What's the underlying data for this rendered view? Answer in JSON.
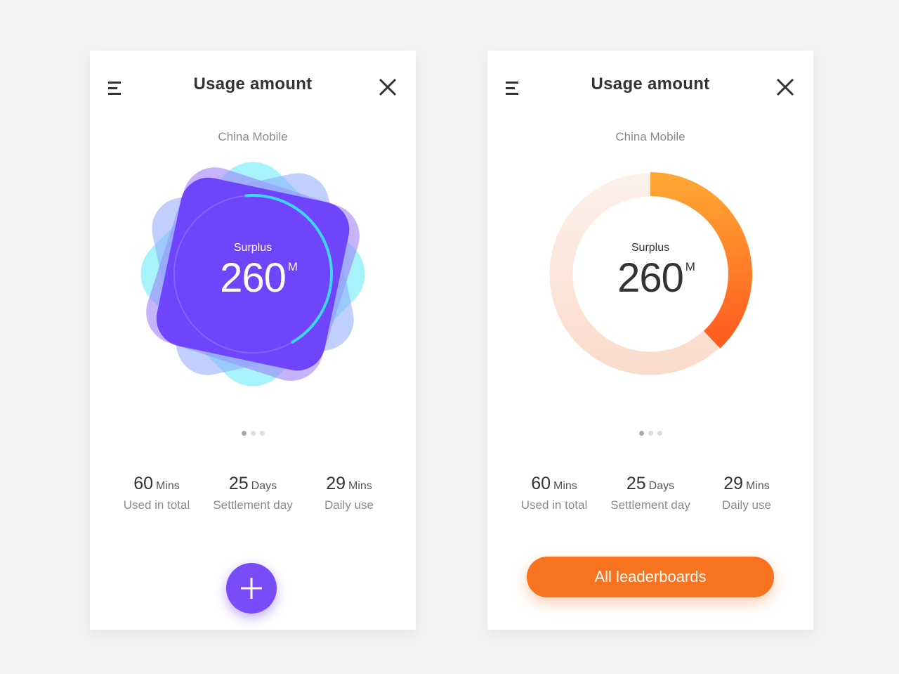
{
  "colors": {
    "background": "#f3f3f3",
    "card": "#ffffff",
    "purple": "#6f44fb",
    "cyan": "#3bd8f0",
    "orange": "#f7731f",
    "orange_track": "#fbe3d6"
  },
  "cards": [
    {
      "header": {
        "title": "Usage amount",
        "menu_icon": "menu-icon",
        "close_icon": "close-icon"
      },
      "carrier": "China Mobile",
      "gauge": {
        "label": "Surplus",
        "value": "260",
        "unit": "M",
        "fill_fraction": 0.43
      },
      "pager": {
        "count": 3,
        "active": 0
      },
      "stats": [
        {
          "value": "60",
          "unit": "Mins",
          "label": "Used in total"
        },
        {
          "value": "25",
          "unit": "Days",
          "label": "Settlement day"
        },
        {
          "value": "29",
          "unit": "Mins",
          "label": "Daily use"
        }
      ],
      "action": {
        "type": "fab",
        "icon": "plus-icon"
      }
    },
    {
      "header": {
        "title": "Usage amount",
        "menu_icon": "menu-icon",
        "close_icon": "close-icon"
      },
      "carrier": "China Mobile",
      "gauge": {
        "label": "Surplus",
        "value": "260",
        "unit": "M",
        "fill_fraction": 0.38
      },
      "pager": {
        "count": 3,
        "active": 0
      },
      "stats": [
        {
          "value": "60",
          "unit": "Mins",
          "label": "Used in total"
        },
        {
          "value": "25",
          "unit": "Days",
          "label": "Settlement day"
        },
        {
          "value": "29",
          "unit": "Mins",
          "label": "Daily use"
        }
      ],
      "action": {
        "type": "button",
        "label": "All leaderboards"
      }
    }
  ]
}
